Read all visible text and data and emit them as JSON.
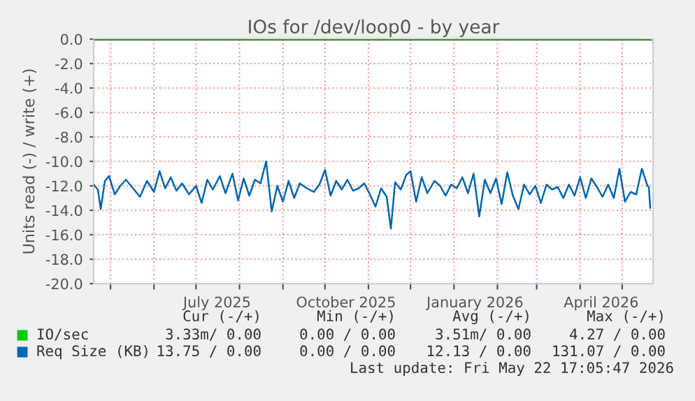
{
  "chart_data": {
    "type": "line",
    "title": "IOs for /dev/loop0 - by year",
    "ylabel": "Units read (-) / write (+)",
    "xlim": [
      "2025-04-19",
      "2026-05-23"
    ],
    "xticks": [
      {
        "value": "2025-05-01",
        "label": null
      },
      {
        "value": "2025-06-01",
        "label": null
      },
      {
        "value": "2025-07-01",
        "label": null
      },
      {
        "value": "2025-07-16",
        "label": "July 2025"
      },
      {
        "value": "2025-08-01",
        "label": null
      },
      {
        "value": "2025-09-01",
        "label": null
      },
      {
        "value": "2025-10-01",
        "label": null
      },
      {
        "value": "2025-10-16",
        "label": "October 2025"
      },
      {
        "value": "2025-11-01",
        "label": null
      },
      {
        "value": "2025-12-01",
        "label": null
      },
      {
        "value": "2026-01-01",
        "label": null
      },
      {
        "value": "2026-01-16",
        "label": "January 2026"
      },
      {
        "value": "2026-02-01",
        "label": null
      },
      {
        "value": "2026-03-01",
        "label": null
      },
      {
        "value": "2026-04-01",
        "label": null
      },
      {
        "value": "2026-04-16",
        "label": "April 2026"
      },
      {
        "value": "2026-05-01",
        "label": null
      }
    ],
    "ylim": [
      -20,
      0
    ],
    "yticks": [
      {
        "value": -20,
        "label": "-20.0"
      },
      {
        "value": -18,
        "label": "-18.0"
      },
      {
        "value": -16,
        "label": "-16.0"
      },
      {
        "value": -14,
        "label": "-14.0"
      },
      {
        "value": -12,
        "label": "-12.0"
      },
      {
        "value": -10,
        "label": "-10.0"
      },
      {
        "value": -8,
        "label": "-8.0"
      },
      {
        "value": -6,
        "label": "-6.0"
      },
      {
        "value": -4,
        "label": "-4.0"
      },
      {
        "value": -2,
        "label": "-2.0"
      },
      {
        "value": 0,
        "label": "0.0"
      }
    ],
    "grid": true,
    "legend": "bottom",
    "ref_lines": [
      {
        "axis": "y",
        "value": 0,
        "color": "#000000"
      }
    ],
    "series": [
      {
        "name": "IO/sec",
        "color": "#00cc00",
        "x": [
          "2025-04-19",
          "2026-05-21"
        ],
        "values": [
          0,
          0
        ]
      },
      {
        "name": "Req Size (KB)",
        "color": "#0066b3",
        "x": [
          "2025-04-19",
          "2025-04-22",
          "2025-04-24",
          "2025-04-27",
          "2025-04-30",
          "2025-05-04",
          "2025-05-08",
          "2025-05-12",
          "2025-05-17",
          "2025-05-22",
          "2025-05-27",
          "2025-06-01",
          "2025-06-05",
          "2025-06-09",
          "2025-06-13",
          "2025-06-17",
          "2025-06-21",
          "2025-06-26",
          "2025-07-01",
          "2025-07-05",
          "2025-07-09",
          "2025-07-13",
          "2025-07-18",
          "2025-07-22",
          "2025-07-27",
          "2025-07-31",
          "2025-08-04",
          "2025-08-08",
          "2025-08-12",
          "2025-08-16",
          "2025-08-20",
          "2025-08-24",
          "2025-08-28",
          "2025-09-01",
          "2025-09-05",
          "2025-09-09",
          "2025-09-13",
          "2025-09-18",
          "2025-09-23",
          "2025-09-27",
          "2025-10-01",
          "2025-10-05",
          "2025-10-09",
          "2025-10-13",
          "2025-10-17",
          "2025-10-21",
          "2025-10-25",
          "2025-10-29",
          "2025-11-02",
          "2025-11-06",
          "2025-11-10",
          "2025-11-14",
          "2025-11-17",
          "2025-11-20",
          "2025-11-24",
          "2025-11-28",
          "2025-12-01",
          "2025-12-05",
          "2025-12-09",
          "2025-12-13",
          "2025-12-18",
          "2025-12-22",
          "2025-12-26",
          "2025-12-30",
          "2026-01-03",
          "2026-01-07",
          "2026-01-11",
          "2026-01-15",
          "2026-01-19",
          "2026-01-23",
          "2026-01-27",
          "2026-01-31",
          "2026-02-04",
          "2026-02-08",
          "2026-02-12",
          "2026-02-16",
          "2026-02-20",
          "2026-02-24",
          "2026-02-28",
          "2026-03-04",
          "2026-03-08",
          "2026-03-12",
          "2026-03-16",
          "2026-03-20",
          "2026-03-24",
          "2026-03-28",
          "2026-04-01",
          "2026-04-05",
          "2026-04-09",
          "2026-04-13",
          "2026-04-17",
          "2026-04-21",
          "2026-04-25",
          "2026-04-29",
          "2026-05-03",
          "2026-05-07",
          "2026-05-11",
          "2026-05-15",
          "2026-05-19",
          "2026-05-20",
          "2026-05-21"
        ],
        "values": [
          -11.9,
          -12.3,
          -13.9,
          -11.6,
          -11.2,
          -12.7,
          -12.0,
          -11.5,
          -12.2,
          -12.9,
          -11.6,
          -12.5,
          -10.8,
          -12.2,
          -11.3,
          -12.4,
          -11.8,
          -12.7,
          -12.0,
          -13.4,
          -11.5,
          -12.3,
          -11.2,
          -12.6,
          -11.0,
          -13.2,
          -11.4,
          -12.8,
          -11.5,
          -11.8,
          -10.0,
          -14.1,
          -12.0,
          -13.3,
          -11.6,
          -13.0,
          -11.8,
          -12.2,
          -12.5,
          -11.9,
          -10.7,
          -12.8,
          -11.6,
          -12.3,
          -11.5,
          -12.4,
          -12.2,
          -11.8,
          -12.7,
          -13.7,
          -12.2,
          -12.9,
          -15.5,
          -11.7,
          -12.3,
          -11.1,
          -10.8,
          -13.3,
          -11.3,
          -12.6,
          -11.6,
          -12.0,
          -12.8,
          -11.9,
          -12.2,
          -11.3,
          -12.6,
          -11.0,
          -14.5,
          -11.5,
          -12.6,
          -11.4,
          -13.5,
          -10.9,
          -12.8,
          -13.9,
          -11.9,
          -12.7,
          -12.0,
          -13.4,
          -11.9,
          -12.3,
          -12.1,
          -13.0,
          -11.9,
          -12.8,
          -11.3,
          -13.0,
          -11.4,
          -12.1,
          -12.9,
          -11.9,
          -13.0,
          -10.6,
          -13.3,
          -12.5,
          -12.7,
          -10.6,
          -12.0,
          -12.1,
          -13.8
        ]
      }
    ],
    "annotations": [
      "Cur (-/+)",
      "Min (-/+)",
      "Avg (-/+)",
      "Max (-/+)",
      "3.33m/ 0.00",
      "0.00 / 0.00",
      "3.51m/ 0.00",
      "4.27 / 0.00",
      "13.75 / 0.00",
      "0.00 / 0.00",
      "12.13 / 0.00",
      "131.07 / 0.00",
      "Last update: Fri May 22 17:05:47 2026"
    ]
  }
}
